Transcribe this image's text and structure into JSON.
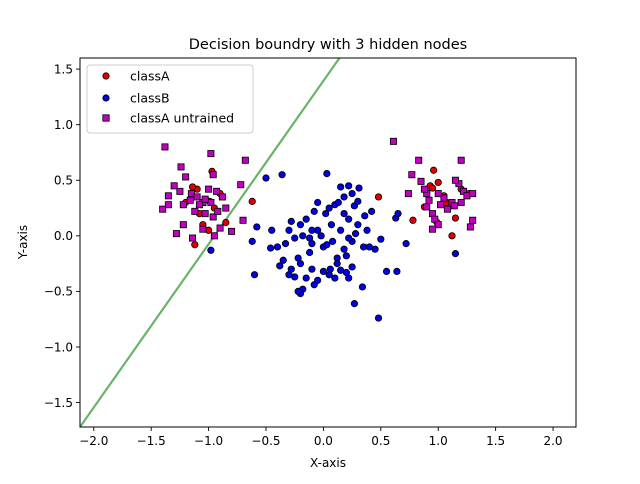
{
  "chart_data": {
    "type": "scatter",
    "title": "Decision boundry with 3 hidden nodes",
    "xlabel": "X-axis",
    "ylabel": "Y-axis",
    "xlim": [
      -2.12,
      2.2
    ],
    "ylim": [
      -1.72,
      1.6
    ],
    "xticks": [
      -2.0,
      -1.5,
      -1.0,
      -0.5,
      0.0,
      0.5,
      1.0,
      1.5,
      2.0
    ],
    "xtick_labels": [
      "−2.0",
      "−1.5",
      "−1.0",
      "−0.5",
      "0.0",
      "0.5",
      "1.0",
      "1.5",
      "2.0"
    ],
    "yticks": [
      -1.5,
      -1.0,
      -0.5,
      0.0,
      0.5,
      1.0,
      1.5
    ],
    "ytick_labels": [
      "−1.5",
      "−1.0",
      "−0.5",
      "0.0",
      "0.5",
      "1.0",
      "1.5"
    ],
    "grid": false,
    "legend_position": "top-left",
    "boundary": {
      "color": "#6ab46a",
      "x": [
        -2.12,
        0.14
      ],
      "y": [
        -1.72,
        1.6
      ]
    },
    "series": [
      {
        "name": "classA",
        "marker": "circle",
        "color": "#e00000",
        "points": [
          [
            -1.1,
            0.42
          ],
          [
            -0.97,
            0.58
          ],
          [
            -1.05,
            0.1
          ],
          [
            -1.12,
            -0.08
          ],
          [
            -0.95,
            0.25
          ],
          [
            -0.9,
            0.38
          ],
          [
            -1.2,
            0.3
          ],
          [
            -0.85,
            0.12
          ],
          [
            -1.0,
            0.05
          ],
          [
            -1.08,
            0.2
          ],
          [
            -0.99,
            0.31
          ],
          [
            -1.14,
            0.44
          ],
          [
            -0.62,
            0.31
          ],
          [
            0.48,
            0.35
          ],
          [
            0.93,
            0.45
          ],
          [
            0.96,
            0.59
          ],
          [
            1.0,
            0.48
          ],
          [
            1.05,
            0.36
          ],
          [
            0.88,
            0.26
          ],
          [
            1.15,
            0.16
          ],
          [
            0.78,
            0.14
          ],
          [
            1.12,
            0.0
          ],
          [
            1.2,
            0.42
          ],
          [
            1.27,
            0.38
          ],
          [
            0.9,
            0.39
          ],
          [
            0.99,
            0.12
          ],
          [
            1.07,
            0.3
          ],
          [
            0.95,
            0.43
          ]
        ]
      },
      {
        "name": "classB",
        "marker": "circle",
        "color": "#0000e0",
        "points": [
          [
            -0.36,
            0.55
          ],
          [
            -0.5,
            0.52
          ],
          [
            0.03,
            0.56
          ],
          [
            0.15,
            0.44
          ],
          [
            0.22,
            0.45
          ],
          [
            0.31,
            0.43
          ],
          [
            -0.98,
            -0.13
          ],
          [
            -0.6,
            -0.35
          ],
          [
            -0.62,
            -0.05
          ],
          [
            -0.58,
            0.08
          ],
          [
            -0.45,
            0.05
          ],
          [
            -0.4,
            -0.1
          ],
          [
            -0.46,
            -0.11
          ],
          [
            -0.33,
            -0.07
          ],
          [
            -0.38,
            -0.27
          ],
          [
            -0.28,
            0.13
          ],
          [
            -0.2,
            0.1
          ],
          [
            -0.15,
            0.15
          ],
          [
            -0.25,
            -0.02
          ],
          [
            -0.1,
            -0.07
          ],
          [
            -0.05,
            0.05
          ],
          [
            0.02,
            0.2
          ],
          [
            0.05,
            0.25
          ],
          [
            0.1,
            0.28
          ],
          [
            0.13,
            0.3
          ],
          [
            0.18,
            0.2
          ],
          [
            0.22,
            0.15
          ],
          [
            0.27,
            0.27
          ],
          [
            0.3,
            0.31
          ],
          [
            0.36,
            0.18
          ],
          [
            0.28,
            0.02
          ],
          [
            0.25,
            -0.05
          ],
          [
            0.35,
            -0.1
          ],
          [
            0.4,
            -0.1
          ],
          [
            0.45,
            -0.12
          ],
          [
            0.5,
            -0.03
          ],
          [
            0.55,
            -0.32
          ],
          [
            0.64,
            -0.32
          ],
          [
            0.63,
            0.16
          ],
          [
            0.65,
            0.2
          ],
          [
            0.72,
            -0.07
          ],
          [
            0.48,
            -0.74
          ],
          [
            0.27,
            -0.61
          ],
          [
            0.34,
            -0.46
          ],
          [
            0.22,
            -0.38
          ],
          [
            0.2,
            -0.33
          ],
          [
            0.15,
            -0.31
          ],
          [
            0.05,
            -0.35
          ],
          [
            0.0,
            -0.32
          ],
          [
            -0.1,
            -0.3
          ],
          [
            -0.15,
            -0.38
          ],
          [
            -0.18,
            -0.48
          ],
          [
            -0.2,
            -0.52
          ],
          [
            -0.22,
            -0.5
          ],
          [
            -0.08,
            -0.44
          ],
          [
            -0.05,
            -0.4
          ],
          [
            -0.25,
            -0.37
          ],
          [
            -0.3,
            -0.35
          ],
          [
            -0.22,
            -0.2
          ],
          [
            -0.12,
            -0.15
          ],
          [
            0.0,
            -0.1
          ],
          [
            0.08,
            -0.05
          ],
          [
            0.12,
            -0.2
          ],
          [
            0.18,
            -0.12
          ],
          [
            0.2,
            -0.18
          ],
          [
            0.25,
            -0.28
          ],
          [
            -0.02,
            0.0
          ],
          [
            0.03,
            -0.08
          ],
          [
            -0.08,
            0.22
          ],
          [
            -0.05,
            0.3
          ],
          [
            -0.12,
            -0.02
          ],
          [
            -0.3,
            0.05
          ],
          [
            -0.18,
            0.0
          ],
          [
            0.07,
            0.1
          ],
          [
            0.15,
            0.05
          ],
          [
            0.3,
            0.1
          ],
          [
            0.22,
            -0.02
          ],
          [
            0.12,
            -0.25
          ],
          [
            0.06,
            -0.3
          ],
          [
            -0.2,
            -0.25
          ],
          [
            -0.35,
            -0.22
          ],
          [
            0.18,
            0.35
          ],
          [
            0.25,
            0.38
          ],
          [
            -0.1,
            0.05
          ],
          [
            1.15,
            -0.16
          ],
          [
            0.38,
            0.05
          ],
          [
            0.42,
            0.22
          ],
          [
            -0.28,
            -0.3
          ],
          [
            0.1,
            -0.38
          ]
        ]
      },
      {
        "name": "classA untrained",
        "marker": "square",
        "color": "#c000c0",
        "points": [
          [
            -1.38,
            0.8
          ],
          [
            -0.98,
            0.74
          ],
          [
            -0.68,
            0.68
          ],
          [
            -1.24,
            0.62
          ],
          [
            -1.2,
            0.53
          ],
          [
            -0.96,
            0.55
          ],
          [
            -0.72,
            0.46
          ],
          [
            -1.35,
            0.36
          ],
          [
            -1.3,
            0.45
          ],
          [
            -1.25,
            0.4
          ],
          [
            -1.15,
            0.38
          ],
          [
            -1.1,
            0.35
          ],
          [
            -1.05,
            0.3
          ],
          [
            -1.0,
            0.42
          ],
          [
            -0.93,
            0.4
          ],
          [
            -0.88,
            0.35
          ],
          [
            -0.85,
            0.25
          ],
          [
            -1.4,
            0.24
          ],
          [
            -1.35,
            0.28
          ],
          [
            -1.22,
            0.28
          ],
          [
            -1.12,
            0.22
          ],
          [
            -1.08,
            0.28
          ],
          [
            -1.03,
            0.2
          ],
          [
            -0.96,
            0.17
          ],
          [
            -0.98,
            0.3
          ],
          [
            -0.92,
            0.22
          ],
          [
            -0.8,
            0.04
          ],
          [
            -0.7,
            0.14
          ],
          [
            -1.28,
            0.02
          ],
          [
            -1.14,
            -0.02
          ],
          [
            -1.05,
            0.06
          ],
          [
            -0.9,
            0.07
          ],
          [
            -1.22,
            0.1
          ],
          [
            -0.95,
            0.0
          ],
          [
            -1.03,
            0.33
          ],
          [
            -1.16,
            0.32
          ],
          [
            0.61,
            0.85
          ],
          [
            0.74,
            0.38
          ],
          [
            0.83,
            0.68
          ],
          [
            0.77,
            0.55
          ],
          [
            0.85,
            0.49
          ],
          [
            0.9,
            0.38
          ],
          [
            0.92,
            0.32
          ],
          [
            0.9,
            0.26
          ],
          [
            0.95,
            0.2
          ],
          [
            0.97,
            0.15
          ],
          [
            1.0,
            0.1
          ],
          [
            0.95,
            0.06
          ],
          [
            1.02,
            0.28
          ],
          [
            1.05,
            0.34
          ],
          [
            1.08,
            0.24
          ],
          [
            1.12,
            0.3
          ],
          [
            1.14,
            0.27
          ],
          [
            1.18,
            0.47
          ],
          [
            1.2,
            0.68
          ],
          [
            1.22,
            0.4
          ],
          [
            1.25,
            0.36
          ],
          [
            1.3,
            0.38
          ],
          [
            1.28,
            0.08
          ],
          [
            1.3,
            0.14
          ],
          [
            1.15,
            0.5
          ],
          [
            1.2,
            0.3
          ],
          [
            1.0,
            0.38
          ],
          [
            0.88,
            0.42
          ]
        ]
      }
    ]
  }
}
